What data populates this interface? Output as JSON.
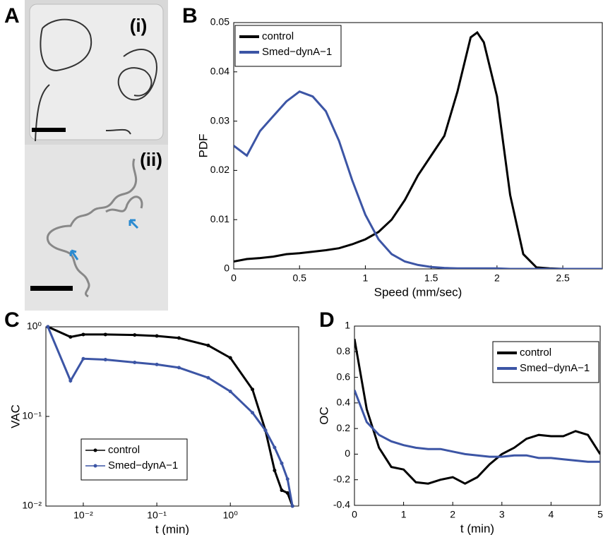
{
  "panel_a": {
    "label": "A",
    "images": [
      "(i)",
      "(ii)"
    ]
  },
  "chart_data": [
    {
      "type": "line",
      "label": "B",
      "xlabel": "Speed (mm/sec)",
      "ylabel": "PDF",
      "x": [
        0,
        0.1,
        0.2,
        0.3,
        0.4,
        0.5,
        0.6,
        0.7,
        0.8,
        0.9,
        1.0,
        1.1,
        1.2,
        1.3,
        1.4,
        1.5,
        1.6,
        1.7,
        1.8,
        1.85,
        1.9,
        2.0,
        2.1,
        2.2,
        2.3,
        2.4,
        2.5,
        2.6,
        2.7,
        2.8
      ],
      "series": [
        {
          "name": "control",
          "color": "#000000",
          "values": [
            0.0015,
            0.002,
            0.0022,
            0.0025,
            0.003,
            0.0032,
            0.0035,
            0.0038,
            0.0042,
            0.005,
            0.006,
            0.0075,
            0.01,
            0.014,
            0.019,
            0.023,
            0.027,
            0.036,
            0.047,
            0.048,
            0.046,
            0.035,
            0.015,
            0.003,
            0.0003,
            0.0001,
            0,
            0,
            0,
            0
          ]
        },
        {
          "name": "Smed−dynA−1",
          "color": "#3c55a5",
          "values": [
            0.025,
            0.023,
            0.028,
            0.031,
            0.034,
            0.036,
            0.035,
            0.032,
            0.026,
            0.018,
            0.011,
            0.006,
            0.003,
            0.0015,
            0.0008,
            0.0004,
            0.0002,
            0.0001,
            0.0001,
            0.0001,
            0.0001,
            0.0001,
            0,
            0,
            0,
            0,
            0,
            0,
            0,
            0
          ]
        }
      ],
      "xlim": [
        0,
        2.8
      ],
      "xticks": [
        0,
        0.5,
        1,
        1.5,
        2,
        2.5
      ],
      "ylim": [
        0,
        0.05
      ],
      "yticks": [
        0,
        0.01,
        0.02,
        0.03,
        0.04,
        0.05
      ],
      "legend": "upper left"
    },
    {
      "type": "line",
      "label": "C",
      "xlabel": "t (min)",
      "ylabel": "VAC",
      "xscale": "log",
      "yscale": "log",
      "markers": true,
      "x": [
        0.0033,
        0.0067,
        0.01,
        0.02,
        0.05,
        0.1,
        0.2,
        0.5,
        1,
        2,
        3,
        4,
        5,
        6,
        7
      ],
      "series": [
        {
          "name": "control",
          "color": "#000000",
          "values": [
            1,
            0.77,
            0.82,
            0.82,
            0.81,
            0.79,
            0.75,
            0.62,
            0.45,
            0.2,
            0.07,
            0.025,
            0.015,
            0.014,
            0.01
          ]
        },
        {
          "name": "Smed−dynA−1",
          "color": "#3c55a5",
          "values": [
            1,
            0.25,
            0.44,
            0.43,
            0.4,
            0.38,
            0.35,
            0.27,
            0.19,
            0.11,
            0.07,
            0.045,
            0.03,
            0.02,
            0.01
          ]
        }
      ],
      "xlim": [
        0.0031,
        8.5
      ],
      "xticks": [
        {
          "value": 0.01,
          "label": "10⁻²"
        },
        {
          "value": 0.1,
          "label": "10⁻¹"
        },
        {
          "value": 1,
          "label": "10⁰"
        }
      ],
      "ylim": [
        0.01,
        1
      ],
      "yticks": [
        {
          "value": 0.01,
          "label": "10⁻²"
        },
        {
          "value": 0.1,
          "label": "10⁻¹"
        },
        {
          "value": 1,
          "label": "10⁰"
        }
      ],
      "legend": "center left"
    },
    {
      "type": "line",
      "label": "D",
      "xlabel": "t (min)",
      "ylabel": "OC",
      "x": [
        0,
        0.25,
        0.5,
        0.75,
        1,
        1.25,
        1.5,
        1.75,
        2,
        2.25,
        2.5,
        2.75,
        3,
        3.25,
        3.5,
        3.75,
        4,
        4.25,
        4.5,
        4.75,
        5
      ],
      "series": [
        {
          "name": "control",
          "color": "#000000",
          "values": [
            0.9,
            0.35,
            0.05,
            -0.1,
            -0.12,
            -0.22,
            -0.23,
            -0.2,
            -0.18,
            -0.23,
            -0.18,
            -0.08,
            0,
            0.05,
            0.12,
            0.15,
            0.14,
            0.14,
            0.18,
            0.15,
            0
          ]
        },
        {
          "name": "Smed−dynA−1",
          "color": "#3c55a5",
          "values": [
            0.5,
            0.25,
            0.15,
            0.1,
            0.07,
            0.05,
            0.04,
            0.04,
            0.02,
            0,
            -0.01,
            -0.02,
            -0.02,
            -0.01,
            -0.01,
            -0.03,
            -0.03,
            -0.04,
            -0.05,
            -0.06,
            -0.06
          ]
        }
      ],
      "xlim": [
        0,
        5
      ],
      "xticks": [
        0,
        1,
        2,
        3,
        4,
        5
      ],
      "ylim": [
        -0.4,
        1
      ],
      "yticks": [
        -0.4,
        -0.2,
        0,
        0.2,
        0.4,
        0.6,
        0.8,
        1
      ],
      "legend": "upper right"
    }
  ]
}
